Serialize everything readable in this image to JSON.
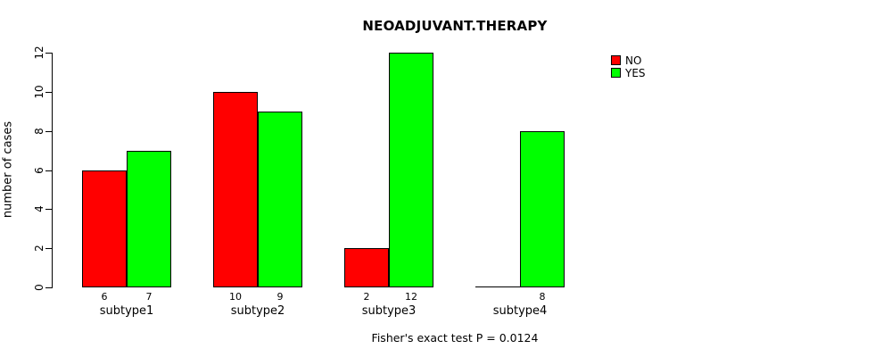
{
  "title": "NEOADJUVANT.THERAPY",
  "y_axis": {
    "label": "number of cases",
    "ticks": [
      0,
      2,
      4,
      6,
      8,
      10,
      12
    ],
    "limits": [
      0,
      12
    ]
  },
  "x_axis": {
    "categories": [
      "subtype1",
      "subtype2",
      "subtype3",
      "subtype4"
    ]
  },
  "legend": {
    "items": [
      {
        "label": "NO",
        "color": "#ff0000"
      },
      {
        "label": "YES",
        "color": "#00ff00"
      }
    ]
  },
  "footer": "Fisher's exact test P = 0.0124",
  "chart_data": {
    "type": "bar",
    "title": "NEOADJUVANT.THERAPY",
    "categories": [
      "subtype1",
      "subtype2",
      "subtype3",
      "subtype4"
    ],
    "series": [
      {
        "name": "NO",
        "color": "#ff0000",
        "values": [
          6,
          10,
          2,
          0
        ]
      },
      {
        "name": "YES",
        "color": "#00ff00",
        "values": [
          7,
          9,
          12,
          8
        ]
      }
    ],
    "bar_value_labels": [
      [
        "6",
        "10",
        "2",
        null
      ],
      [
        "7",
        "9",
        "12",
        "8"
      ]
    ],
    "xlabel": "",
    "ylabel": "number of cases",
    "ylim": [
      0,
      12
    ],
    "yticks": [
      0,
      2,
      4,
      6,
      8,
      10,
      12
    ],
    "grid": false,
    "legend_position": "top-right",
    "annotation": "Fisher's exact test P = 0.0124"
  }
}
